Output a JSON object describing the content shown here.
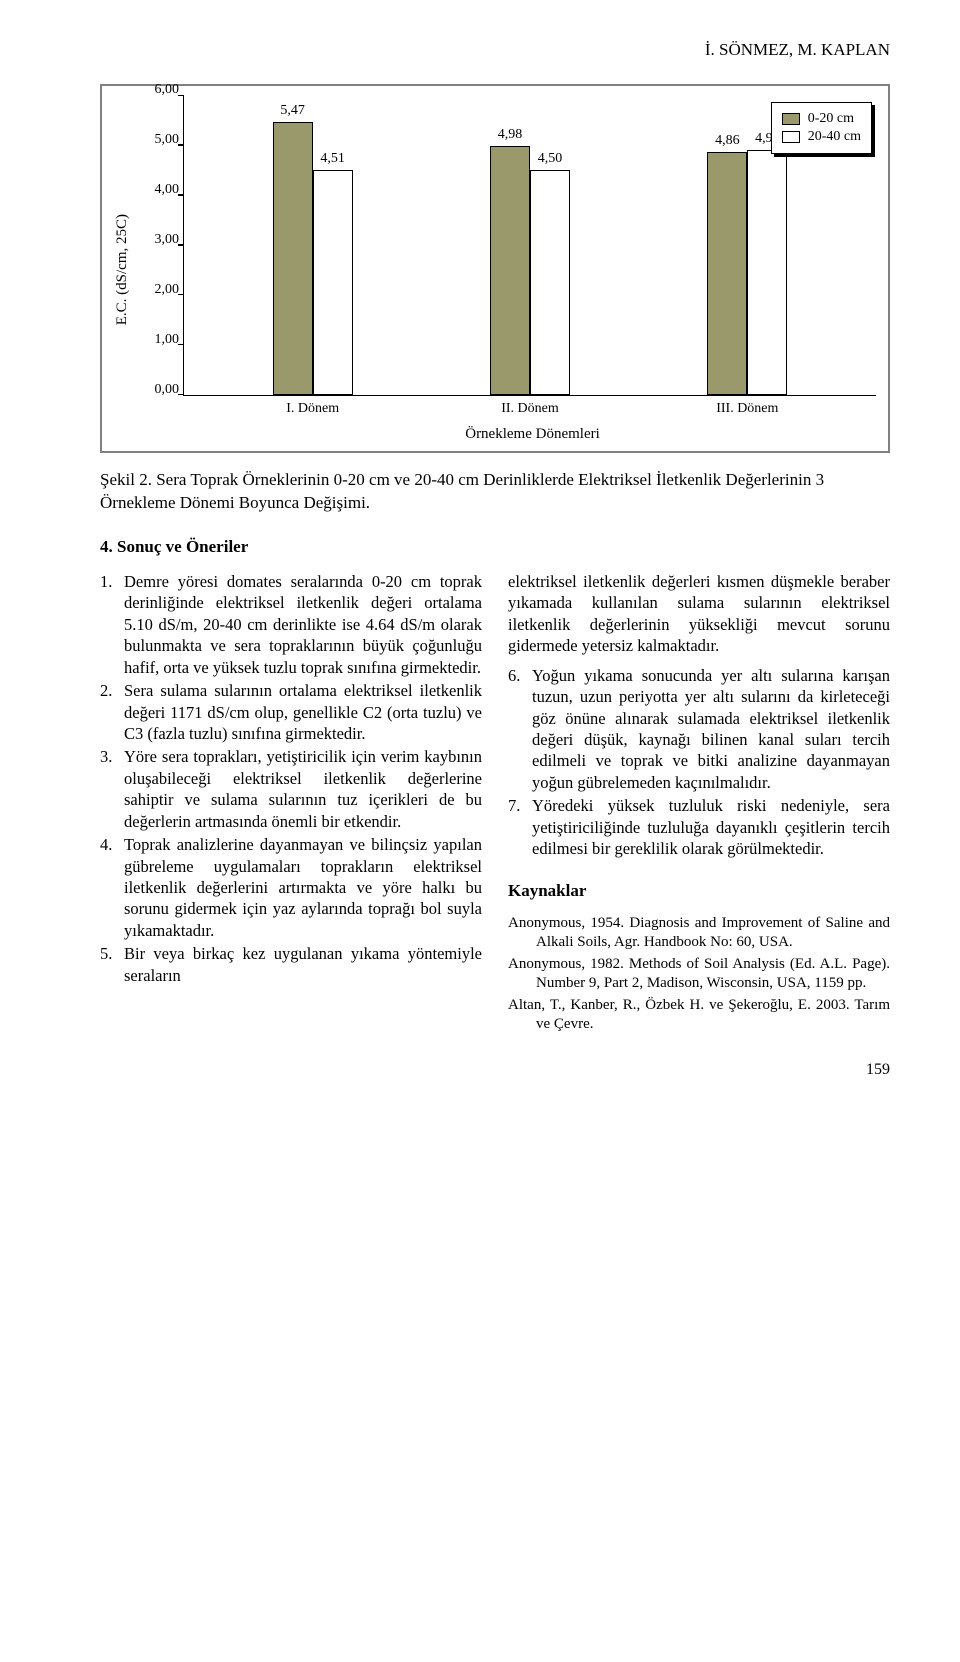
{
  "header_author": "İ. SÖNMEZ, M. KAPLAN",
  "chart": {
    "type": "bar",
    "y_axis_label": "E.C. (dS/cm, 25C)",
    "x_axis_title": "Örnekleme Dönemleri",
    "ylim": [
      0,
      6
    ],
    "ystep": 1,
    "yticks": [
      "0,00",
      "1,00",
      "2,00",
      "3,00",
      "4,00",
      "5,00",
      "6,00"
    ],
    "categories": [
      "I. Dönem",
      "II. Dönem",
      "III. Dönem"
    ],
    "series": [
      {
        "name": "0-20 cm",
        "color": "#99996b",
        "values": [
          5.47,
          4.98,
          4.86
        ],
        "labels": [
          "5,47",
          "4,98",
          "4,86"
        ]
      },
      {
        "name": "20-40 cm",
        "color": "#ffffff",
        "values": [
          4.51,
          4.5,
          4.91
        ],
        "labels": [
          "4,51",
          "4,50",
          "4,91"
        ]
      }
    ],
    "border_color": "#808080",
    "axis_color": "#000000",
    "font_size_axis": 14
  },
  "caption": "Şekil 2. Sera Toprak Örneklerinin 0-20 cm ve 20-40 cm Derinliklerde Elektriksel İletkenlik Değerlerinin 3 Örnekleme Dönemi Boyunca Değişimi.",
  "section_title": "4. Sonuç ve Öneriler",
  "left_list": [
    "Demre yöresi domates seralarında 0-20 cm toprak derinliğinde elektriksel iletkenlik değeri ortalama 5.10 dS/m, 20-40 cm derinlikte ise 4.64 dS/m olarak bulunmakta ve sera topraklarının büyük çoğunluğu hafif, orta ve yüksek tuzlu toprak sınıfına girmektedir.",
    "Sera sulama sularının ortalama elektriksel iletkenlik değeri 1171 dS/cm olup, genellikle C2 (orta tuzlu) ve C3 (fazla tuzlu) sınıfına girmektedir.",
    "Yöre sera toprakları, yetiştiricilik için verim kaybının oluşabileceği elektriksel iletkenlik değerlerine sahiptir ve sulama sularının tuz içerikleri de bu değerlerin artmasında önemli bir etkendir.",
    "Toprak analizlerine dayanmayan ve bilinçsiz yapılan gübreleme uygulamaları toprakların elektriksel iletkenlik değerlerini artırmakta ve yöre halkı bu sorunu gidermek için yaz aylarında toprağı bol suyla yıkamaktadır.",
    "Bir veya birkaç kez uygulanan yıkama yöntemiyle seraların"
  ],
  "right_intro": "elektriksel iletkenlik değerleri kısmen düşmekle beraber yıkamada kullanılan sulama sularının elektriksel iletkenlik değerlerinin yüksekliği mevcut sorunu gidermede yetersiz kalmaktadır.",
  "right_list": [
    {
      "n": "6.",
      "t": "Yoğun yıkama sonucunda yer altı sularına karışan tuzun, uzun periyotta yer altı sularını da kirleteceği göz önüne alınarak sulamada elektriksel iletkenlik değeri düşük, kaynağı bilinen kanal suları tercih edilmeli ve toprak ve bitki analizine dayanmayan yoğun gübrelemeden kaçınılmalıdır."
    },
    {
      "n": "7.",
      "t": "Yöredeki yüksek tuzluluk riski nedeniyle, sera yetiştiriciliğinde tuzluluğa dayanıklı çeşitlerin tercih edilmesi bir gereklilik olarak görülmektedir."
    }
  ],
  "refs_title": "Kaynaklar",
  "refs": [
    "Anonymous, 1954. Diagnosis and Improvement of Saline and Alkali Soils, Agr. Handbook No: 60, USA.",
    "Anonymous, 1982. Methods of Soil Analysis (Ed. A.L. Page). Number 9, Part 2, Madison, Wisconsin, USA, 1159 pp.",
    "Altan, T., Kanber, R., Özbek H. ve Şekeroğlu, E. 2003. Tarım ve Çevre."
  ],
  "page_number": "159"
}
